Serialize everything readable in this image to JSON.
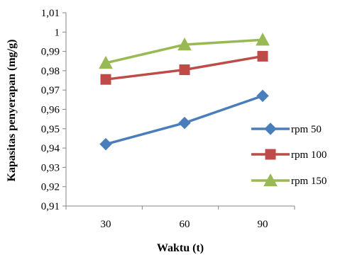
{
  "chart_data": {
    "type": "line",
    "xlabel": "Waktu (t)",
    "ylabel": "Kapasitas penyerapan (mg/g)",
    "x": [
      30,
      60,
      90
    ],
    "x_tick_labels": [
      "30",
      "60",
      "90"
    ],
    "ylim": [
      0.91,
      1.01
    ],
    "y_ticks": [
      0.91,
      0.92,
      0.93,
      0.94,
      0.95,
      0.96,
      0.97,
      0.98,
      0.99,
      1.0,
      1.01
    ],
    "y_tick_labels": [
      "0,91",
      "0,92",
      "0,93",
      "0,94",
      "0,95",
      "0,96",
      "0,97",
      "0,98",
      "0,99",
      "1",
      "1,01"
    ],
    "grid": false,
    "legend_position": "right",
    "series": [
      {
        "name": "rpm 50",
        "values": [
          0.942,
          0.953,
          0.967
        ],
        "color": "#4a7ebb",
        "marker": "diamond"
      },
      {
        "name": "rpm 100",
        "values": [
          0.9755,
          0.9805,
          0.9875
        ],
        "color": "#be4b48",
        "marker": "square"
      },
      {
        "name": "rpm 150",
        "values": [
          0.984,
          0.9935,
          0.996
        ],
        "color": "#98b954",
        "marker": "triangle"
      }
    ]
  }
}
